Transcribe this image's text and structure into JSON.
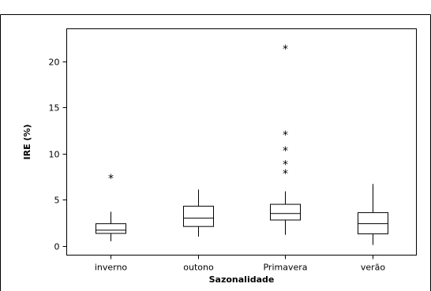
{
  "chart_data": {
    "type": "boxplot",
    "title": "",
    "xlabel": "Sazonalidade",
    "ylabel": "IRE (%)",
    "ylim": [
      -1,
      23.5
    ],
    "yticks": [
      0,
      5,
      10,
      15,
      20
    ],
    "ytick_labels": [
      "0",
      "5",
      "10",
      "15",
      "20"
    ],
    "grid": false,
    "outlier_symbol": "*",
    "categories": [
      "inverno",
      "outono",
      "Primavera",
      "verão"
    ],
    "boxes": [
      {
        "min": 0.5,
        "q1": 1.35,
        "median": 1.7,
        "q3": 2.4,
        "max": 3.7,
        "outliers": [
          7.5
        ]
      },
      {
        "min": 1.0,
        "q1": 2.1,
        "median": 3.0,
        "q3": 4.3,
        "max": 6.1,
        "outliers": []
      },
      {
        "min": 1.2,
        "q1": 2.8,
        "median": 3.5,
        "q3": 4.5,
        "max": 5.9,
        "outliers": [
          8.0,
          9.0,
          10.5,
          12.2,
          21.5
        ]
      },
      {
        "min": 0.1,
        "q1": 1.3,
        "median": 2.4,
        "q3": 3.6,
        "max": 6.7,
        "outliers": []
      }
    ]
  }
}
